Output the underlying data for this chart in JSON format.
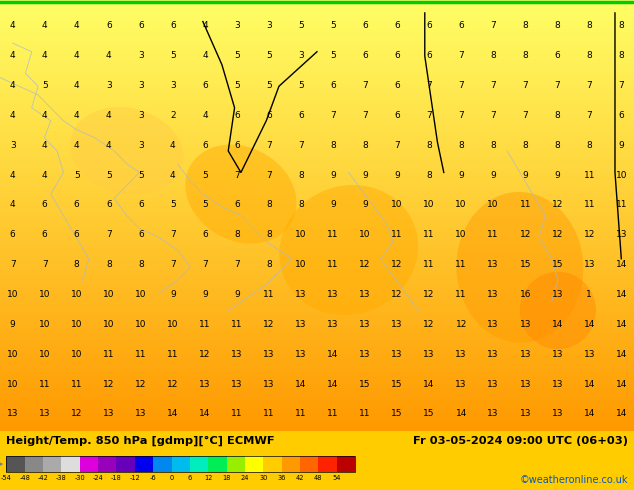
{
  "title_left": "Height/Temp. 850 hPa [gdmp][°C] ECMWF",
  "title_right": "Fr 03-05-2024 09:00 UTC (06+03)",
  "credit": "©weatheronline.co.uk",
  "colorbar_values": [
    -54,
    -48,
    -42,
    -38,
    -30,
    -24,
    -18,
    -12,
    -6,
    0,
    6,
    12,
    18,
    24,
    30,
    36,
    42,
    48,
    54
  ],
  "colorbar_colors": [
    "#555555",
    "#888888",
    "#aaaaaa",
    "#dddddd",
    "#dd00dd",
    "#9900bb",
    "#6600bb",
    "#0000ee",
    "#0088ee",
    "#00bbee",
    "#00eebb",
    "#00ee55",
    "#99ee00",
    "#ffff00",
    "#ffcc00",
    "#ff9900",
    "#ff6600",
    "#ff2200",
    "#bb0000"
  ],
  "green_line_color": "#00cc00",
  "bottom_bar_color": "#ffcc00",
  "figsize": [
    6.34,
    4.9
  ],
  "dpi": 100,
  "map_gradient_colors": [
    "#ffff88",
    "#ffee44",
    "#ffdd00",
    "#ffcc00",
    "#ffbb00",
    "#ffaa00",
    "#ff9900"
  ],
  "orange_blob_color": "#ff9900",
  "contour_color": "#000000",
  "coast_color": "#aabbcc",
  "label_color": "#000000",
  "label_fontsize": 6.5,
  "labels": [
    [
      4,
      4,
      4,
      6,
      6,
      6,
      4,
      3,
      3,
      5,
      5,
      6,
      6,
      6,
      6,
      7,
      8,
      8,
      8,
      8
    ],
    [
      4,
      4,
      4,
      4,
      3,
      5,
      4,
      5,
      5,
      3,
      5,
      6,
      6,
      6,
      7,
      8,
      8,
      6,
      8,
      8
    ],
    [
      4,
      5,
      4,
      3,
      3,
      3,
      6,
      5,
      5,
      5,
      6,
      7,
      6,
      7,
      7,
      7,
      7,
      7,
      7,
      7
    ],
    [
      4,
      4,
      4,
      4,
      3,
      2,
      4,
      6,
      6,
      6,
      7,
      7,
      6,
      7,
      7,
      7,
      7,
      8,
      7,
      6
    ],
    [
      3,
      4,
      4,
      4,
      3,
      4,
      6,
      6,
      7,
      7,
      8,
      8,
      7,
      8,
      8,
      8,
      8,
      8,
      8,
      9
    ],
    [
      4,
      4,
      5,
      5,
      5,
      4,
      5,
      7,
      7,
      8,
      9,
      9,
      9,
      8,
      9,
      9,
      9,
      9,
      11,
      10
    ],
    [
      4,
      6,
      6,
      6,
      6,
      5,
      5,
      6,
      8,
      8,
      9,
      9,
      10,
      10,
      10,
      10,
      11,
      12,
      11,
      11
    ],
    [
      6,
      6,
      6,
      7,
      6,
      7,
      6,
      8,
      8,
      10,
      11,
      10,
      11,
      11,
      10,
      11,
      12,
      12,
      12,
      13
    ],
    [
      7,
      7,
      8,
      8,
      8,
      7,
      7,
      7,
      8,
      10,
      11,
      12,
      12,
      11,
      11,
      13,
      15,
      15,
      13,
      14
    ],
    [
      10,
      10,
      10,
      10,
      10,
      9,
      9,
      9,
      11,
      13,
      13,
      13,
      12,
      12,
      11,
      13,
      16,
      13,
      1,
      14
    ],
    [
      9,
      10,
      10,
      10,
      10,
      10,
      11,
      11,
      12,
      13,
      13,
      13,
      13,
      12,
      12,
      13,
      13,
      14,
      14,
      14
    ],
    [
      10,
      10,
      10,
      11,
      11,
      11,
      12,
      13,
      13,
      13,
      14,
      13,
      13,
      13,
      13,
      13,
      13,
      13,
      13,
      14
    ],
    [
      10,
      11,
      11,
      12,
      12,
      12,
      13,
      13,
      13,
      14,
      14,
      15,
      15,
      14,
      13,
      13,
      13,
      13,
      14,
      14
    ],
    [
      13,
      13,
      12,
      13,
      13,
      14,
      14,
      11,
      11,
      11,
      11,
      11,
      15,
      15,
      14,
      13,
      13,
      13,
      14,
      14
    ]
  ]
}
